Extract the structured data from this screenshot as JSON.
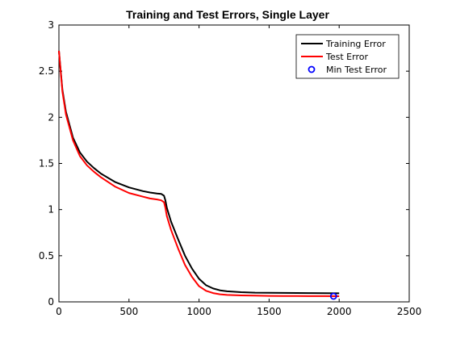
{
  "chart_data": {
    "type": "line",
    "title": "Training and Test Errors, Single Layer",
    "xlabel": "",
    "ylabel": "",
    "xlim": [
      0,
      2500
    ],
    "ylim": [
      0,
      3
    ],
    "xticks": [
      0,
      500,
      1000,
      1500,
      2000,
      2500
    ],
    "yticks": [
      0,
      0.5,
      1,
      1.5,
      2,
      2.5,
      3
    ],
    "grid": false,
    "legend_position": "top-right",
    "series": [
      {
        "name": "Training Error",
        "color": "#000000",
        "style": "line",
        "x": [
          0,
          25,
          50,
          100,
          150,
          200,
          250,
          300,
          400,
          500,
          600,
          650,
          700,
          730,
          750,
          760,
          770,
          800,
          850,
          900,
          950,
          1000,
          1050,
          1100,
          1150,
          1200,
          1300,
          1400,
          1500,
          1600,
          1700,
          1800,
          1900,
          2000
        ],
        "y": [
          2.72,
          2.3,
          2.06,
          1.78,
          1.62,
          1.52,
          1.45,
          1.39,
          1.3,
          1.24,
          1.2,
          1.185,
          1.175,
          1.17,
          1.15,
          1.1,
          1.02,
          0.87,
          0.68,
          0.5,
          0.36,
          0.25,
          0.18,
          0.145,
          0.125,
          0.115,
          0.105,
          0.1,
          0.098,
          0.097,
          0.096,
          0.095,
          0.094,
          0.093
        ]
      },
      {
        "name": "Test Error",
        "color": "#ff0000",
        "style": "line",
        "x": [
          0,
          25,
          50,
          100,
          150,
          200,
          250,
          300,
          400,
          500,
          600,
          650,
          700,
          730,
          750,
          760,
          770,
          800,
          850,
          900,
          950,
          1000,
          1050,
          1100,
          1150,
          1200,
          1300,
          1400,
          1500,
          1600,
          1700,
          1800,
          1900,
          2000
        ],
        "y": [
          2.72,
          2.28,
          2.03,
          1.75,
          1.58,
          1.48,
          1.41,
          1.35,
          1.25,
          1.18,
          1.14,
          1.12,
          1.11,
          1.1,
          1.08,
          1.02,
          0.93,
          0.78,
          0.58,
          0.4,
          0.27,
          0.17,
          0.12,
          0.095,
          0.082,
          0.075,
          0.07,
          0.067,
          0.065,
          0.064,
          0.063,
          0.062,
          0.062,
          0.061
        ]
      },
      {
        "name": "Min Test Error",
        "color": "#0000ff",
        "style": "marker",
        "x": [
          1960
        ],
        "y": [
          0.061
        ]
      }
    ]
  }
}
